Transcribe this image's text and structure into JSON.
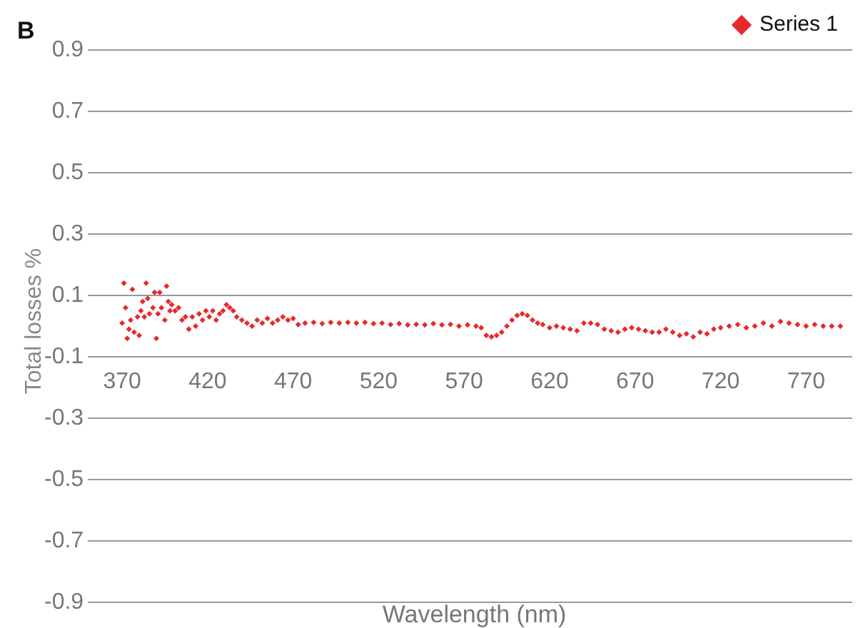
{
  "chart_data": {
    "type": "scatter",
    "xlabel": "Wavelength (nm)",
    "ylabel": "Total losses %",
    "annotations": [
      "B"
    ],
    "xlim": [
      355,
      797
    ],
    "xticks": [
      370,
      420,
      470,
      520,
      570,
      620,
      670,
      720,
      770
    ],
    "ylim": [
      -0.9,
      0.9
    ],
    "yticks": [
      -0.9,
      -0.7,
      -0.5,
      -0.3,
      -0.1,
      0.1,
      0.3,
      0.5,
      0.7,
      0.9
    ],
    "grid": "y",
    "legend": "top right",
    "marker": "diamond",
    "series": [
      {
        "name": "Series 1",
        "color": "#e8292b",
        "x": [
          370,
          371,
          372,
          373,
          374,
          375,
          376,
          377,
          379,
          380,
          381,
          382,
          383,
          384,
          385,
          386,
          388,
          389,
          390,
          391,
          392,
          393,
          395,
          396,
          397,
          398,
          399,
          401,
          403,
          405,
          407,
          409,
          411,
          413,
          415,
          417,
          419,
          421,
          423,
          425,
          427,
          429,
          431,
          433,
          435,
          437,
          440,
          443,
          446,
          449,
          452,
          455,
          458,
          461,
          464,
          467,
          470,
          473,
          477,
          482,
          487,
          492,
          497,
          502,
          507,
          512,
          517,
          522,
          527,
          532,
          537,
          542,
          547,
          552,
          557,
          562,
          567,
          572,
          577,
          580,
          583,
          586,
          589,
          592,
          595,
          598,
          601,
          604,
          607,
          610,
          613,
          616,
          620,
          624,
          628,
          632,
          636,
          640,
          644,
          648,
          652,
          656,
          660,
          664,
          668,
          672,
          676,
          680,
          684,
          688,
          692,
          696,
          700,
          704,
          708,
          712,
          716,
          720,
          725,
          730,
          735,
          740,
          745,
          750,
          755,
          760,
          765,
          770,
          775,
          780,
          785,
          790
        ],
        "values": [
          0.01,
          0.14,
          0.06,
          -0.04,
          -0.01,
          0.02,
          0.12,
          -0.02,
          0.03,
          -0.03,
          0.05,
          0.08,
          0.03,
          0.14,
          0.09,
          0.04,
          0.06,
          0.11,
          -0.04,
          0.04,
          0.11,
          0.06,
          0.02,
          0.13,
          0.08,
          0.05,
          0.07,
          0.05,
          0.06,
          0.02,
          0.03,
          -0.01,
          0.03,
          0,
          0.04,
          0.02,
          0.05,
          0.03,
          0.05,
          0.02,
          0.04,
          0.05,
          0.07,
          0.06,
          0.05,
          0.03,
          0.02,
          0.01,
          0,
          0.02,
          0.01,
          0.025,
          0.01,
          0.02,
          0.03,
          0.02,
          0.025,
          0.005,
          0.01,
          0.012,
          0.008,
          0.012,
          0.01,
          0.012,
          0.01,
          0.012,
          0.008,
          0.01,
          0.005,
          0.008,
          0.004,
          0.006,
          0.004,
          0.008,
          0.004,
          0.006,
          0,
          0.004,
          0,
          -0.005,
          -0.03,
          -0.035,
          -0.03,
          -0.02,
          0,
          0.02,
          0.035,
          0.04,
          0.035,
          0.02,
          0.01,
          0.005,
          -0.005,
          0,
          -0.005,
          -0.01,
          -0.015,
          0.01,
          0.01,
          0.005,
          -0.01,
          -0.015,
          -0.02,
          -0.01,
          -0.005,
          -0.01,
          -0.015,
          -0.02,
          -0.02,
          -0.01,
          -0.02,
          -0.03,
          -0.025,
          -0.035,
          -0.02,
          -0.025,
          -0.01,
          -0.005,
          0,
          0.005,
          -0.005,
          0,
          0.01,
          0,
          0.015,
          0.01,
          0.005,
          0,
          0.005,
          0,
          0,
          0
        ]
      }
    ]
  }
}
